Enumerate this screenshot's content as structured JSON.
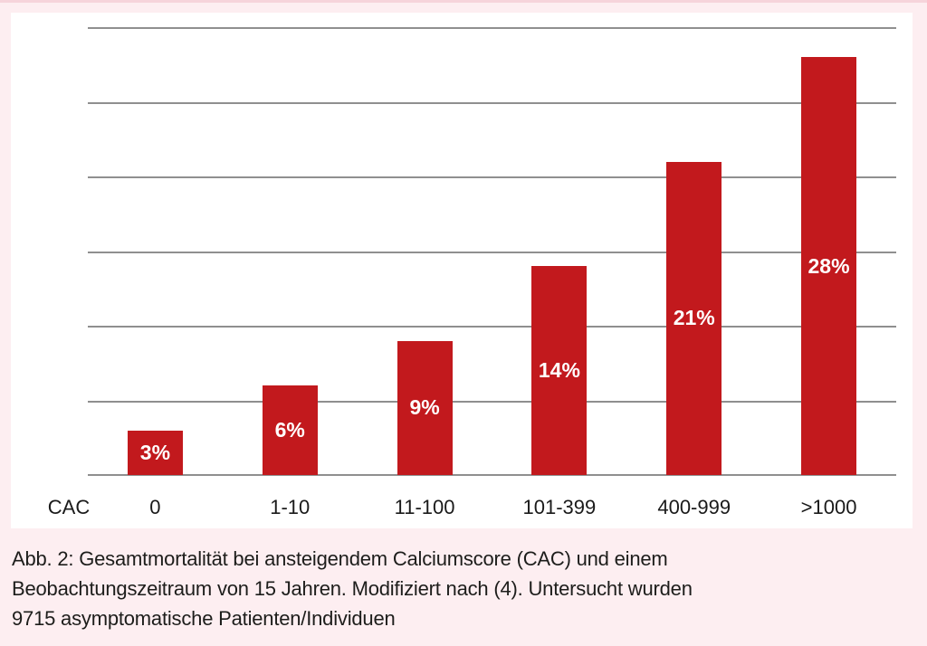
{
  "chart_data": {
    "type": "bar",
    "title": "",
    "xlabel": "",
    "ylabel": "",
    "x_axis_prefix_label": "CAC",
    "categories": [
      "0",
      "1-10",
      "11-100",
      "101-399",
      "400-999",
      ">1000"
    ],
    "values": [
      3,
      6,
      9,
      14,
      21,
      28
    ],
    "value_labels": [
      "3%",
      "6%",
      "9%",
      "14%",
      "21%",
      "28%"
    ],
    "ylim": [
      0,
      30
    ],
    "gridline_step": 5,
    "grid": true,
    "legend": false,
    "bar_label_position": "centered-inside-bar"
  },
  "figure": {
    "caption_lines": [
      "Abb. 2: Gesamtmortalität bei ansteigendem Calciumscore (CAC) und einem",
      "Beobachtungszeitraum von 15 Jahren. Modifiziert nach (4). Untersucht wurden",
      "9715 asymptomatische Patienten/Individuen"
    ]
  },
  "colors": {
    "bar": "#c2191d",
    "background": "#fdeef1",
    "panel": "#ffffff",
    "gridline": "#8f8f8f",
    "bar_label_text": "#ffffff",
    "axis_label_text": "#1a1a1a",
    "caption_text": "#1d1d1b"
  }
}
